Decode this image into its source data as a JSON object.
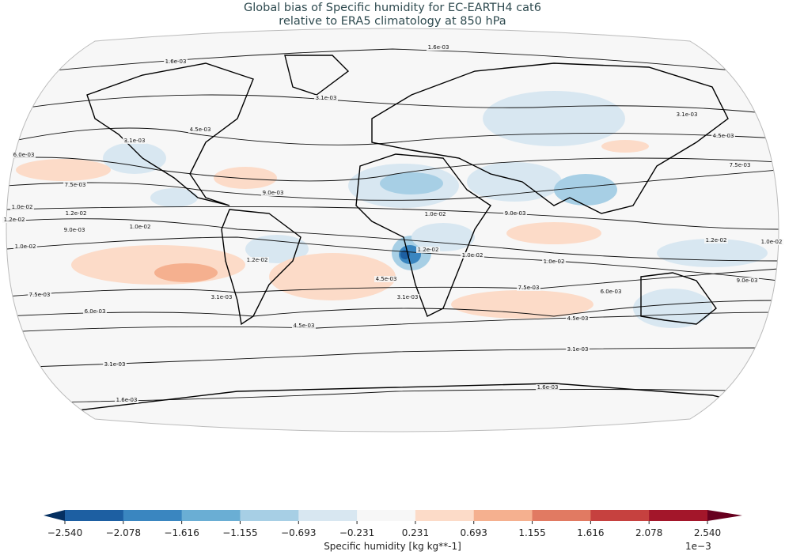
{
  "title": {
    "line1": "Global bias of Specific humidity for EC-EARTH4 cat6",
    "line2": "relative to ERA5 climatology at 850 hPa"
  },
  "map": {
    "projection": "Robinson",
    "contour_label_texts": [
      "1.6e-03",
      "3.1e-03",
      "4.5e-03",
      "6.0e-03",
      "7.5e-03",
      "9.0e-03",
      "1.0e-02",
      "1.2e-02"
    ],
    "contour_labels": [
      "1.6e-03",
      "1.6e-03",
      "1.6e-03",
      "1.6e-03",
      "3.1e-03",
      "3.1e-03",
      "3.1e-03",
      "3.1e-03",
      "3.1e-03",
      "3.1e-03",
      "3.1e-03",
      "4.5e-03",
      "4.5e-03",
      "4.5e-03",
      "4.5e-03",
      "4.5e-03",
      "6.0e-03",
      "6.0e-03",
      "6.0e-03",
      "7.5e-03",
      "7.5e-03",
      "7.5e-03",
      "7.5e-03",
      "9.0e-03",
      "9.0e-03",
      "9.0e-03",
      "9.0e-03",
      "1.0e-02",
      "1.0e-02",
      "1.0e-02",
      "1.0e-02",
      "1.0e-02",
      "1.0e-02",
      "1.0e-02",
      "1.2e-02",
      "1.2e-02",
      "1.2e-02",
      "1.2e-02",
      "1.2e-02"
    ]
  },
  "colorbar": {
    "label": "Specific humidity [kg kg**-1]",
    "multiplier": "1e−3",
    "ticks": [
      "−2.540",
      "−2.078",
      "−1.616",
      "−1.155",
      "−0.693",
      "−0.231",
      "0.231",
      "0.693",
      "1.155",
      "1.616",
      "2.078",
      "2.540"
    ],
    "colors": [
      "#1d5fa2",
      "#3a86c0",
      "#6aaed4",
      "#a7cfe5",
      "#d8e7f1",
      "#f7f7f7",
      "#fcdbc8",
      "#f5b08f",
      "#e17a62",
      "#c6413f",
      "#a3162a"
    ],
    "extend_low_color": "#053061",
    "extend_high_color": "#67001f"
  }
}
